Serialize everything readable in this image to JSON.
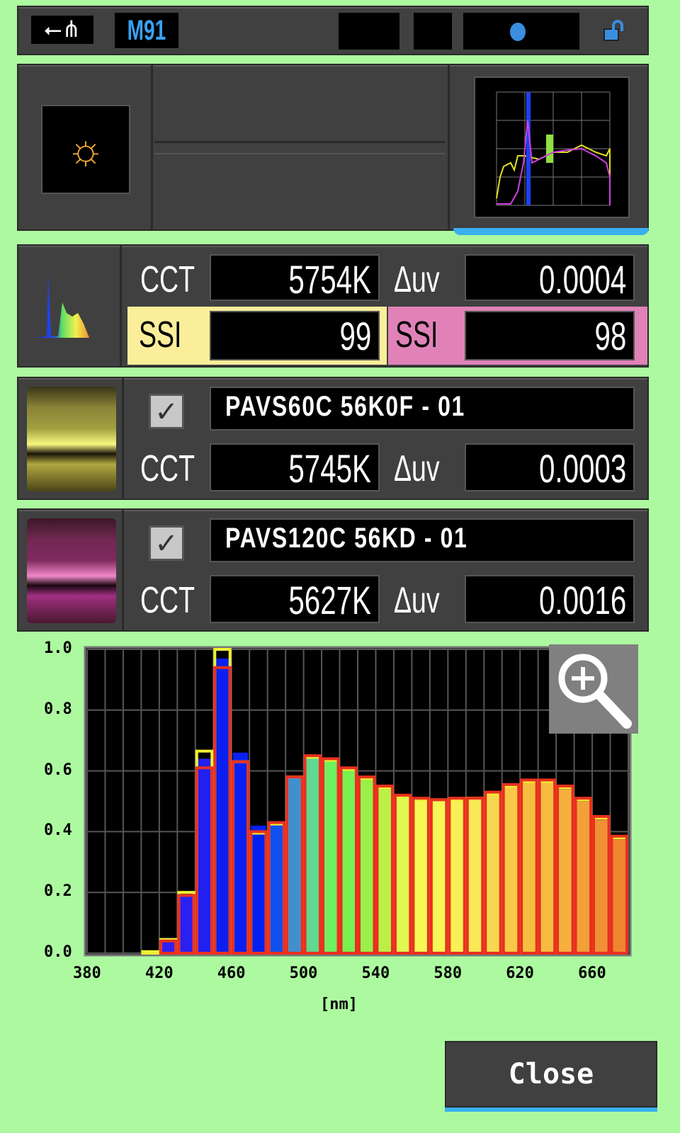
{
  "status_bar": {
    "usb_icon": "usb-icon",
    "memory": "M91",
    "lock_icon": "unlocked-padlock-icon",
    "indicator_color": "#3a8ee0"
  },
  "mode_panel": {
    "light_icon": "daylight-sun-icon",
    "thumbnail": "spectrum-comparison-thumbnail"
  },
  "measured": {
    "icon": "spectrum-icon",
    "cct_label": "CCT",
    "cct": "5754K",
    "duv_label": "Δuv",
    "duv": "0.0004",
    "ssi1_label": "SSI",
    "ssi1": "99",
    "ssi1_color": "#fbee9a",
    "ssi2_label": "SSI",
    "ssi2": "98",
    "ssi2_color": "#e082b8"
  },
  "references": [
    {
      "checked": true,
      "name": "PAVS60C 56K0F - 01",
      "cct_label": "CCT",
      "cct": "5745K",
      "duv_label": "Δuv",
      "duv": "0.0003",
      "color": "#f0ec60"
    },
    {
      "checked": true,
      "name": "PAVS120C 56KD - 01",
      "cct_label": "CCT",
      "cct": "5627K",
      "duv_label": "Δuv",
      "duv": "0.0016",
      "color": "#e050a0"
    }
  ],
  "chart_data": {
    "type": "bar",
    "xlabel": "[nm]",
    "xlim": [
      380,
      680
    ],
    "ylim": [
      0,
      1.0
    ],
    "x_ticks": [
      "380",
      "420",
      "460",
      "500",
      "540",
      "580",
      "620",
      "660"
    ],
    "y_ticks": [
      "0.0",
      "0.2",
      "0.4",
      "0.6",
      "0.8",
      "1.0"
    ],
    "grid": true,
    "x": [
      410,
      420,
      430,
      440,
      450,
      460,
      470,
      480,
      490,
      500,
      510,
      520,
      530,
      540,
      550,
      560,
      570,
      580,
      590,
      600,
      610,
      620,
      630,
      640,
      650,
      660,
      670
    ],
    "series": [
      {
        "role": "measured-fill",
        "values": [
          0.005,
          0.05,
          0.195,
          0.64,
          0.97,
          0.66,
          0.42,
          0.43,
          0.58,
          0.645,
          0.635,
          0.605,
          0.575,
          0.545,
          0.515,
          0.505,
          0.5,
          0.505,
          0.51,
          0.525,
          0.55,
          0.565,
          0.565,
          0.54,
          0.5,
          0.44,
          0.375
        ],
        "colors": [
          "#3020f0",
          "#3020f0",
          "#2a20f0",
          "#2020f0",
          "#0a20f0",
          "#0a20f0",
          "#0020f0",
          "#1050f0",
          "#4090d0",
          "#60d890",
          "#70f060",
          "#78f050",
          "#98f048",
          "#b8f048",
          "#e0f850",
          "#f5f855",
          "#f5f855",
          "#f8f055",
          "#f8e855",
          "#f8d850",
          "#f8c848",
          "#f5c040",
          "#f5bc40",
          "#f5b040",
          "#f2a038",
          "#f09035",
          "#f08530"
        ],
        "color": "#0a20f0"
      },
      {
        "role": "reference-1",
        "values": [
          0.005,
          0.045,
          0.2,
          0.665,
          1.0,
          0.63,
          0.395,
          0.425,
          0.58,
          0.645,
          0.635,
          0.605,
          0.575,
          0.545,
          0.515,
          0.505,
          0.505,
          0.505,
          0.51,
          0.525,
          0.55,
          0.565,
          0.565,
          0.545,
          0.505,
          0.445,
          0.38
        ],
        "color": "#f0f030"
      },
      {
        "role": "reference-2",
        "values": [
          0.0,
          0.04,
          0.19,
          0.61,
          0.94,
          0.63,
          0.4,
          0.43,
          0.58,
          0.65,
          0.64,
          0.61,
          0.58,
          0.55,
          0.52,
          0.51,
          0.505,
          0.51,
          0.51,
          0.53,
          0.555,
          0.57,
          0.57,
          0.55,
          0.51,
          0.45,
          0.385
        ],
        "color": "#e83020"
      }
    ]
  },
  "zoom_icon": "zoom-in-magnifier-icon",
  "close_label": "Close"
}
